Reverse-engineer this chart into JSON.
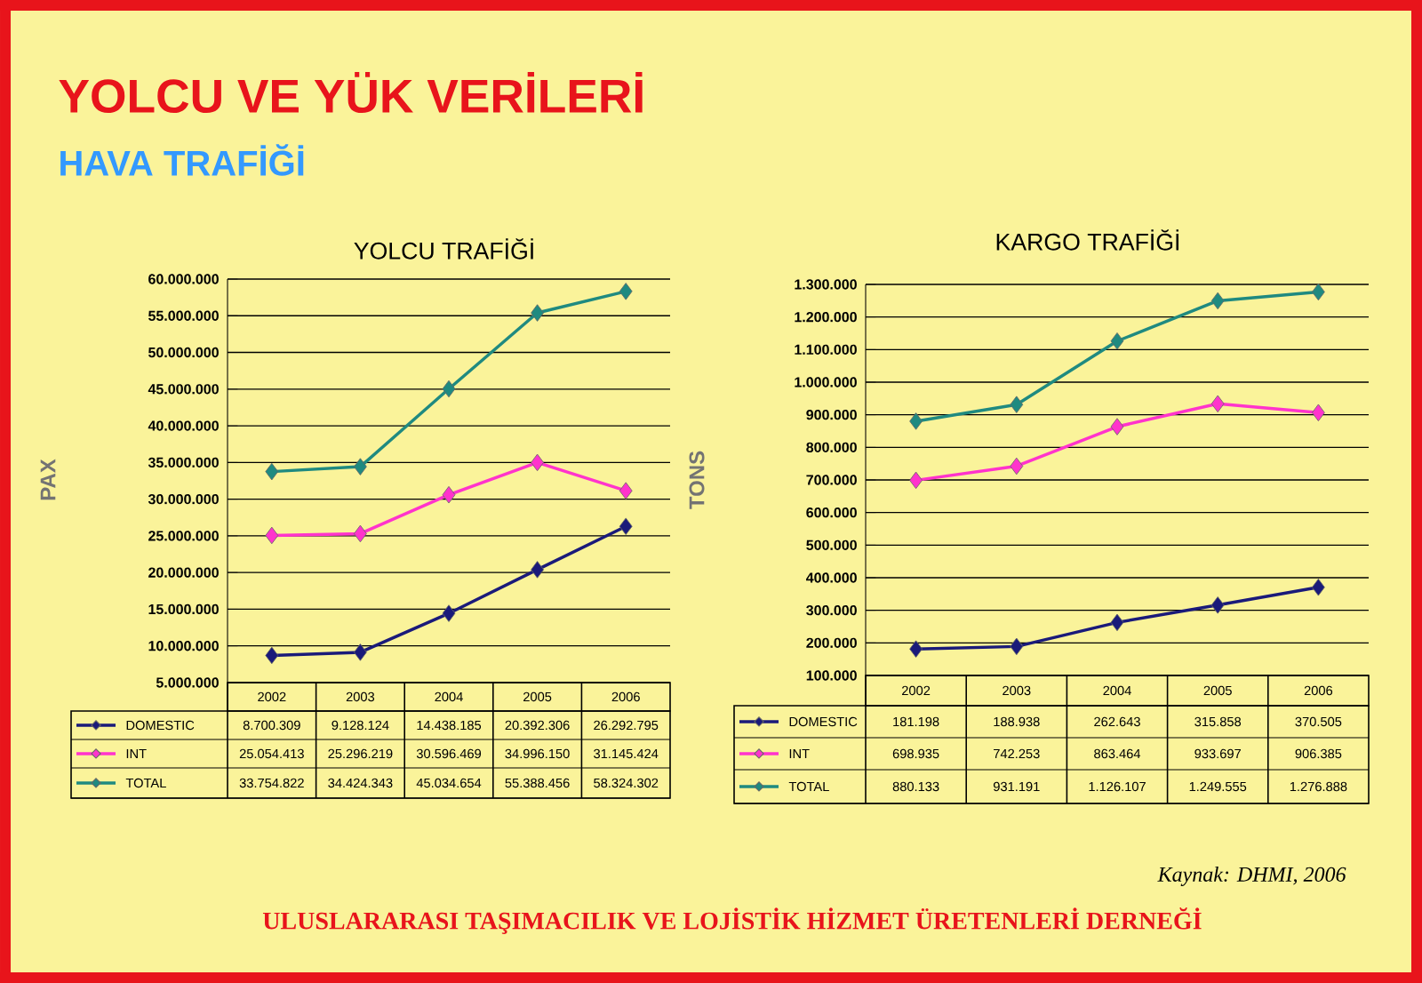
{
  "chart_data": [
    {
      "type": "line",
      "title": "YOLCU TRAFİĞİ",
      "ylabel": "PAX",
      "categories": [
        "2002",
        "2003",
        "2004",
        "2005",
        "2006"
      ],
      "series": [
        {
          "name": "DOMESTIC",
          "color": "#1a1a7a",
          "values": [
            8700309,
            9128124,
            14438185,
            20392306,
            26292795
          ],
          "value_labels": [
            "8.700.309",
            "9.128.124",
            "14.438.185",
            "20.392.306",
            "26.292.795"
          ]
        },
        {
          "name": "INT",
          "color": "#ff33cc",
          "values": [
            25054413,
            25296219,
            30596469,
            34996150,
            31145424
          ],
          "value_labels": [
            "25.054.413",
            "25.296.219",
            "30.596.469",
            "34.996.150",
            "31.145.424"
          ]
        },
        {
          "name": "TOTAL",
          "color": "#1f8a80",
          "values": [
            33754822,
            34424343,
            45034654,
            55388456,
            58324302
          ],
          "value_labels": [
            "33.754.822",
            "34.424.343",
            "45.034.654",
            "55.388.456",
            "58.324.302"
          ]
        }
      ],
      "ylim": [
        5000000,
        60000000
      ],
      "yticks": [
        {
          "value": 5000000,
          "label": "5.000.000"
        },
        {
          "value": 10000000,
          "label": "10.000.000"
        },
        {
          "value": 15000000,
          "label": "15.000.000"
        },
        {
          "value": 20000000,
          "label": "20.000.000"
        },
        {
          "value": 25000000,
          "label": "25.000.000"
        },
        {
          "value": 30000000,
          "label": "30.000.000"
        },
        {
          "value": 35000000,
          "label": "35.000.000"
        },
        {
          "value": 40000000,
          "label": "40.000.000"
        },
        {
          "value": 45000000,
          "label": "45.000.000"
        },
        {
          "value": 50000000,
          "label": "50.000.000"
        },
        {
          "value": 55000000,
          "label": "55.000.000"
        },
        {
          "value": 60000000,
          "label": "60.000.000"
        }
      ],
      "grid": "y",
      "legend": "bottom",
      "marker": "diamond",
      "annotations": [
        "YOLCU VE YÜK VERİLERİ",
        "HAVA TRAFİĞİ",
        "Kaynak: DHMI, 2006",
        "ULUSLARARASI TAŞIMACILIK VE LOJİSTİK HİZMET ÜRETENLERİ DERNEĞİ"
      ]
    },
    {
      "type": "line",
      "title": "KARGO TRAFİĞİ",
      "ylabel": "TONS",
      "categories": [
        "2002",
        "2003",
        "2004",
        "2005",
        "2006"
      ],
      "series": [
        {
          "name": "DOMESTIC",
          "color": "#1a1a7a",
          "values": [
            181198,
            188938,
            262643,
            315858,
            370505
          ],
          "value_labels": [
            "181.198",
            "188.938",
            "262.643",
            "315.858",
            "370.505"
          ]
        },
        {
          "name": "INT",
          "color": "#ff33cc",
          "values": [
            698935,
            742253,
            863464,
            933697,
            906385
          ],
          "value_labels": [
            "698.935",
            "742.253",
            "863.464",
            "933.697",
            "906.385"
          ]
        },
        {
          "name": "TOTAL",
          "color": "#1f8a80",
          "values": [
            880133,
            931191,
            1126107,
            1249555,
            1276888
          ],
          "value_labels": [
            "880.133",
            "931.191",
            "1.126.107",
            "1.249.555",
            "1.276.888"
          ]
        }
      ],
      "ylim": [
        100000,
        1300000
      ],
      "yticks": [
        {
          "value": 100000,
          "label": "100.000"
        },
        {
          "value": 200000,
          "label": "200.000"
        },
        {
          "value": 300000,
          "label": "300.000"
        },
        {
          "value": 400000,
          "label": "400.000"
        },
        {
          "value": 500000,
          "label": "500.000"
        },
        {
          "value": 600000,
          "label": "600.000"
        },
        {
          "value": 700000,
          "label": "700.000"
        },
        {
          "value": 800000,
          "label": "800.000"
        },
        {
          "value": 900000,
          "label": "900.000"
        },
        {
          "value": 1000000,
          "label": "1.000.000"
        },
        {
          "value": 1100000,
          "label": "1.100.000"
        },
        {
          "value": 1200000,
          "label": "1.200.000"
        },
        {
          "value": 1300000,
          "label": "1.300.000"
        }
      ],
      "grid": "y",
      "legend": "bottom",
      "marker": "diamond"
    }
  ]
}
